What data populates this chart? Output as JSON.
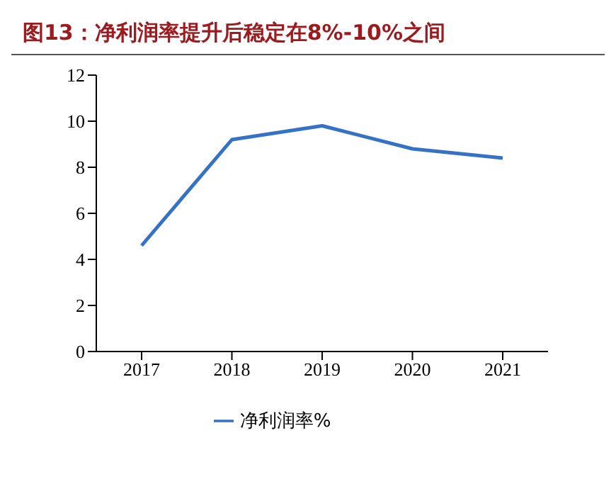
{
  "chart_data": {
    "type": "line",
    "title": "图13：净利润率提升后稳定在8%-10%之间",
    "categories": [
      "2017",
      "2018",
      "2019",
      "2020",
      "2021"
    ],
    "series": [
      {
        "name": "净利润率%",
        "color": "#3572c6",
        "values": [
          4.6,
          9.2,
          9.8,
          8.8,
          8.4
        ]
      }
    ],
    "ylim": [
      0,
      12
    ],
    "yticks": [
      0,
      2,
      4,
      6,
      8,
      10,
      12
    ],
    "grid": false,
    "legend": "bottom",
    "marker": "none",
    "line_style": "solid"
  }
}
